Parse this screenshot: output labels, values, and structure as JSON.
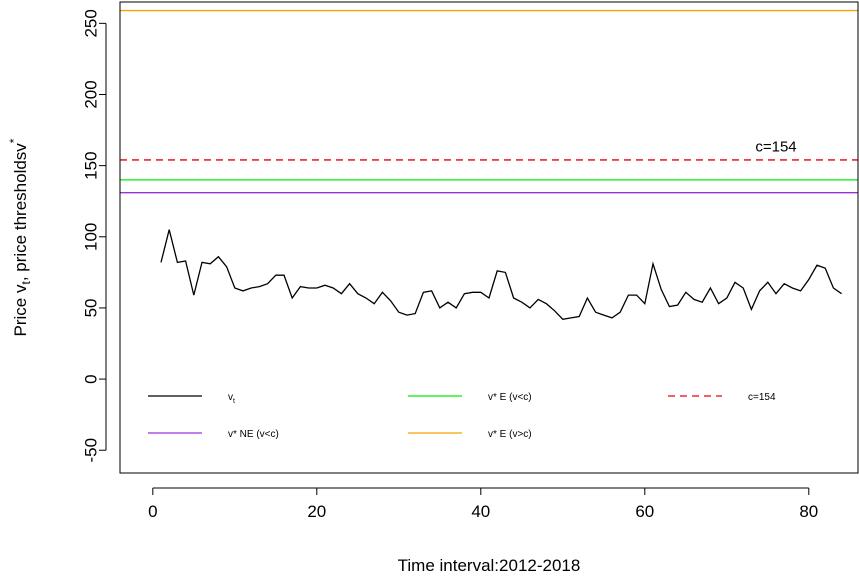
{
  "chart_data": {
    "type": "line",
    "xlabel": "Time interval:2012-2018",
    "ylabel": "Price v",
    "ylabel_sub": "t",
    "ylabel_rest": ", price thresholds",
    "ylabel_end": "v",
    "ylabel_sup": "*",
    "xlim": [
      -4,
      86
    ],
    "ylim": [
      -66,
      265
    ],
    "x_ticks": [
      0,
      20,
      40,
      60,
      80
    ],
    "y_ticks": [
      -50,
      0,
      50,
      100,
      150,
      200,
      250
    ],
    "grid": false,
    "legend_position": "bottom-inside",
    "series": [
      {
        "key": "vt",
        "legend_main": "v",
        "legend_sub": "t",
        "color": "#000000",
        "dash": false,
        "x": [
          1,
          2,
          3,
          4,
          5,
          6,
          7,
          8,
          9,
          10,
          11,
          12,
          13,
          14,
          15,
          16,
          17,
          18,
          19,
          20,
          21,
          22,
          23,
          24,
          25,
          26,
          27,
          28,
          29,
          30,
          31,
          32,
          33,
          34,
          35,
          36,
          37,
          38,
          39,
          40,
          41,
          42,
          43,
          44,
          45,
          46,
          47,
          48,
          49,
          50,
          51,
          52,
          53,
          54,
          55,
          56,
          57,
          58,
          59,
          60,
          61,
          62,
          63,
          64,
          65,
          66,
          67,
          68,
          69,
          70,
          71,
          72,
          73,
          74,
          75,
          76,
          77,
          78,
          79,
          80,
          81,
          82,
          83,
          84
        ],
        "values": [
          82,
          105,
          82,
          83,
          59,
          82,
          81,
          86,
          79,
          64,
          62,
          64,
          65,
          67,
          73,
          73,
          57,
          65,
          64,
          64,
          66,
          64,
          60,
          67,
          60,
          57,
          53,
          61,
          55,
          47,
          45,
          46,
          61,
          62,
          50,
          54,
          50,
          60,
          61,
          61,
          57,
          76,
          75,
          57,
          54,
          50,
          56,
          53,
          48,
          42,
          43,
          44,
          57,
          47,
          45,
          43,
          47,
          59,
          59,
          53,
          81,
          63,
          51,
          52,
          61,
          56,
          54,
          64,
          53,
          57,
          68,
          64,
          49,
          62,
          68,
          60,
          67,
          64,
          62,
          70,
          80,
          78,
          64,
          60
        ]
      },
      {
        "key": "ve_lt",
        "legend_main": "v* E (v<c)",
        "color": "#00ee00",
        "dash": false,
        "value": 140
      },
      {
        "key": "cline",
        "legend_main": "c=154",
        "color": "#e8000b",
        "dash": true,
        "value": 154
      },
      {
        "key": "vne_lt",
        "legend_main": "v* NE (v<c)",
        "color": "#9b30d9",
        "dash": false,
        "value": 131
      },
      {
        "key": "ve_gt",
        "legend_main": "v* E (v>c)",
        "color": "#f4a300",
        "dash": false,
        "value": 259
      }
    ],
    "annotations": [
      {
        "text": "c=154",
        "x": 76,
        "y": 160
      }
    ]
  }
}
